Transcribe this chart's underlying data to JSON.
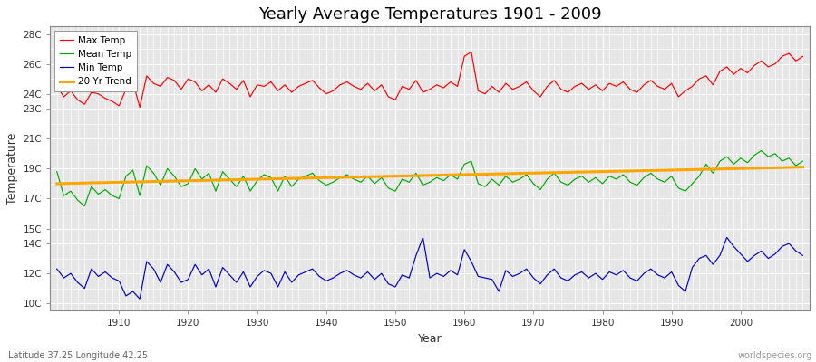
{
  "title": "Yearly Average Temperatures 1901 - 2009",
  "xlabel": "Year",
  "ylabel": "Temperature",
  "lat_lon_label": "Latitude 37.25 Longitude 42.25",
  "watermark": "worldspecies.org",
  "years": [
    1901,
    1902,
    1903,
    1904,
    1905,
    1906,
    1907,
    1908,
    1909,
    1910,
    1911,
    1912,
    1913,
    1914,
    1915,
    1916,
    1917,
    1918,
    1919,
    1920,
    1921,
    1922,
    1923,
    1924,
    1925,
    1926,
    1927,
    1928,
    1929,
    1930,
    1931,
    1932,
    1933,
    1934,
    1935,
    1936,
    1937,
    1938,
    1939,
    1940,
    1941,
    1942,
    1943,
    1944,
    1945,
    1946,
    1947,
    1948,
    1949,
    1950,
    1951,
    1952,
    1953,
    1954,
    1955,
    1956,
    1957,
    1958,
    1959,
    1960,
    1961,
    1962,
    1963,
    1964,
    1965,
    1966,
    1967,
    1968,
    1969,
    1970,
    1971,
    1972,
    1973,
    1974,
    1975,
    1976,
    1977,
    1978,
    1979,
    1980,
    1981,
    1982,
    1983,
    1984,
    1985,
    1986,
    1987,
    1988,
    1989,
    1990,
    1991,
    1992,
    1993,
    1994,
    1995,
    1996,
    1997,
    1998,
    1999,
    2000,
    2001,
    2002,
    2003,
    2004,
    2005,
    2006,
    2007,
    2008,
    2009
  ],
  "max_temp": [
    24.5,
    23.8,
    24.2,
    23.6,
    23.3,
    24.1,
    24.0,
    23.7,
    23.5,
    23.2,
    24.3,
    24.8,
    23.1,
    25.2,
    24.7,
    24.5,
    25.1,
    24.9,
    24.3,
    25.0,
    24.8,
    24.2,
    24.6,
    24.1,
    25.0,
    24.7,
    24.3,
    24.9,
    23.8,
    24.6,
    24.5,
    24.8,
    24.2,
    24.6,
    24.1,
    24.5,
    24.7,
    24.9,
    24.4,
    24.0,
    24.2,
    24.6,
    24.8,
    24.5,
    24.3,
    24.7,
    24.2,
    24.6,
    23.8,
    23.6,
    24.5,
    24.3,
    24.9,
    24.1,
    24.3,
    24.6,
    24.4,
    24.8,
    24.5,
    26.5,
    26.8,
    24.2,
    24.0,
    24.5,
    24.1,
    24.7,
    24.3,
    24.5,
    24.8,
    24.2,
    23.8,
    24.5,
    24.9,
    24.3,
    24.1,
    24.5,
    24.7,
    24.3,
    24.6,
    24.2,
    24.7,
    24.5,
    24.8,
    24.3,
    24.1,
    24.6,
    24.9,
    24.5,
    24.3,
    24.7,
    23.8,
    24.2,
    24.5,
    25.0,
    25.2,
    24.6,
    25.5,
    25.8,
    25.3,
    25.7,
    25.4,
    25.9,
    26.2,
    25.8,
    26.0,
    26.5,
    26.7,
    26.2,
    26.5
  ],
  "mean_temp": [
    18.8,
    17.2,
    17.5,
    16.9,
    16.5,
    17.8,
    17.3,
    17.6,
    17.2,
    17.0,
    18.5,
    18.9,
    17.2,
    19.2,
    18.7,
    17.9,
    19.0,
    18.5,
    17.8,
    18.0,
    19.0,
    18.3,
    18.7,
    17.5,
    18.8,
    18.3,
    17.8,
    18.5,
    17.5,
    18.2,
    18.6,
    18.4,
    17.5,
    18.5,
    17.8,
    18.3,
    18.5,
    18.7,
    18.2,
    17.9,
    18.1,
    18.4,
    18.6,
    18.3,
    18.1,
    18.5,
    18.0,
    18.4,
    17.7,
    17.5,
    18.3,
    18.1,
    18.7,
    17.9,
    18.1,
    18.4,
    18.2,
    18.6,
    18.3,
    19.3,
    19.5,
    18.0,
    17.8,
    18.3,
    17.9,
    18.5,
    18.1,
    18.3,
    18.6,
    18.0,
    17.6,
    18.3,
    18.7,
    18.1,
    17.9,
    18.3,
    18.5,
    18.1,
    18.4,
    18.0,
    18.5,
    18.3,
    18.6,
    18.1,
    17.9,
    18.4,
    18.7,
    18.3,
    18.1,
    18.5,
    17.7,
    17.5,
    18.0,
    18.5,
    19.3,
    18.7,
    19.5,
    19.8,
    19.3,
    19.7,
    19.4,
    19.9,
    20.2,
    19.8,
    20.0,
    19.5,
    19.7,
    19.2,
    19.5
  ],
  "min_temp": [
    12.3,
    11.7,
    12.0,
    11.4,
    11.0,
    12.3,
    11.8,
    12.1,
    11.7,
    11.5,
    10.5,
    10.8,
    10.3,
    12.8,
    12.3,
    11.4,
    12.6,
    12.1,
    11.4,
    11.6,
    12.6,
    11.9,
    12.3,
    11.1,
    12.4,
    11.9,
    11.4,
    12.1,
    11.1,
    11.8,
    12.2,
    12.0,
    11.1,
    12.1,
    11.4,
    11.9,
    12.1,
    12.3,
    11.8,
    11.5,
    11.7,
    12.0,
    12.2,
    11.9,
    11.7,
    12.1,
    11.6,
    12.0,
    11.3,
    11.1,
    11.9,
    11.7,
    13.2,
    14.4,
    11.7,
    12.0,
    11.8,
    12.2,
    11.9,
    13.6,
    12.8,
    11.8,
    11.7,
    11.6,
    10.8,
    12.2,
    11.8,
    12.0,
    12.3,
    11.7,
    11.3,
    11.9,
    12.3,
    11.7,
    11.5,
    11.9,
    12.1,
    11.7,
    12.0,
    11.6,
    12.1,
    11.9,
    12.2,
    11.7,
    11.5,
    12.0,
    12.3,
    11.9,
    11.7,
    12.1,
    11.2,
    10.8,
    12.4,
    13.0,
    13.2,
    12.6,
    13.2,
    14.4,
    13.8,
    13.3,
    12.8,
    13.2,
    13.5,
    13.0,
    13.3,
    13.8,
    14.0,
    13.5,
    13.2
  ],
  "trend_x": [
    1901,
    2009
  ],
  "trend_y": [
    18.0,
    19.1
  ],
  "bg_color": "#ffffff",
  "plot_bg_color": "#e6e6e6",
  "max_color": "#ff0000",
  "mean_color": "#00aa00",
  "min_color": "#0000cc",
  "trend_color": "#ffa500",
  "grid_major_color": "#ffffff",
  "grid_minor_color": "#ffffff",
  "ytick_positions": [
    10,
    12,
    14,
    15,
    17,
    19,
    21,
    23,
    24,
    26,
    28
  ],
  "ytick_labels": [
    "10C",
    "12C",
    "14C",
    "15C",
    "17C",
    "19C",
    "21C",
    "23C",
    "24C",
    "26C",
    "28C"
  ],
  "ylim": [
    9.5,
    28.5
  ],
  "xlim": [
    1900,
    2010
  ],
  "xticks": [
    1910,
    1920,
    1930,
    1940,
    1950,
    1960,
    1970,
    1980,
    1990,
    2000
  ]
}
